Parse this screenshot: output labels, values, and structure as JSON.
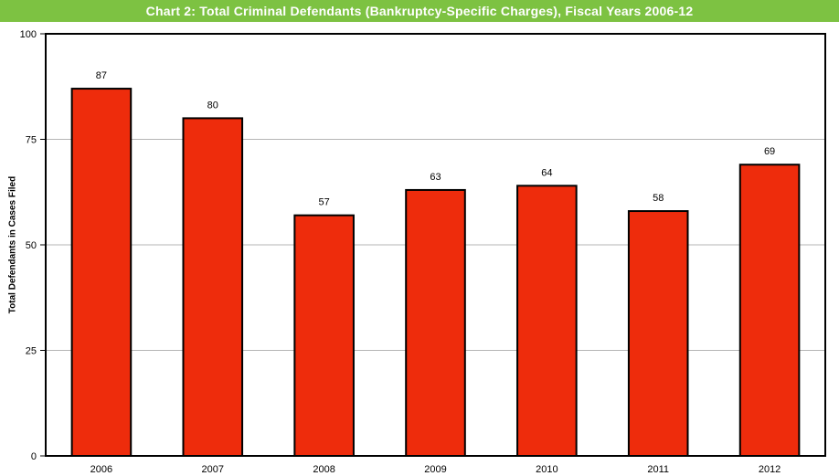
{
  "chart_data": {
    "type": "bar",
    "title": "Chart 2: Total Criminal Defendants (Bankruptcy-Specific Charges), Fiscal Years 2006-12",
    "xlabel": "",
    "ylabel": "Total Defendants in Cases Filed",
    "categories": [
      "2006",
      "2007",
      "2008",
      "2009",
      "2010",
      "2011",
      "2012"
    ],
    "values": [
      87,
      80,
      57,
      63,
      64,
      58,
      69
    ],
    "ylim": [
      0,
      100
    ],
    "yticks": [
      0,
      25,
      50,
      75,
      100
    ],
    "grid": true,
    "legend": "none",
    "colors": {
      "bar": "#ee2c0c",
      "bar_stroke": "#000000",
      "title_bg": "#7dc242",
      "grid": "#b5b5b5"
    }
  }
}
